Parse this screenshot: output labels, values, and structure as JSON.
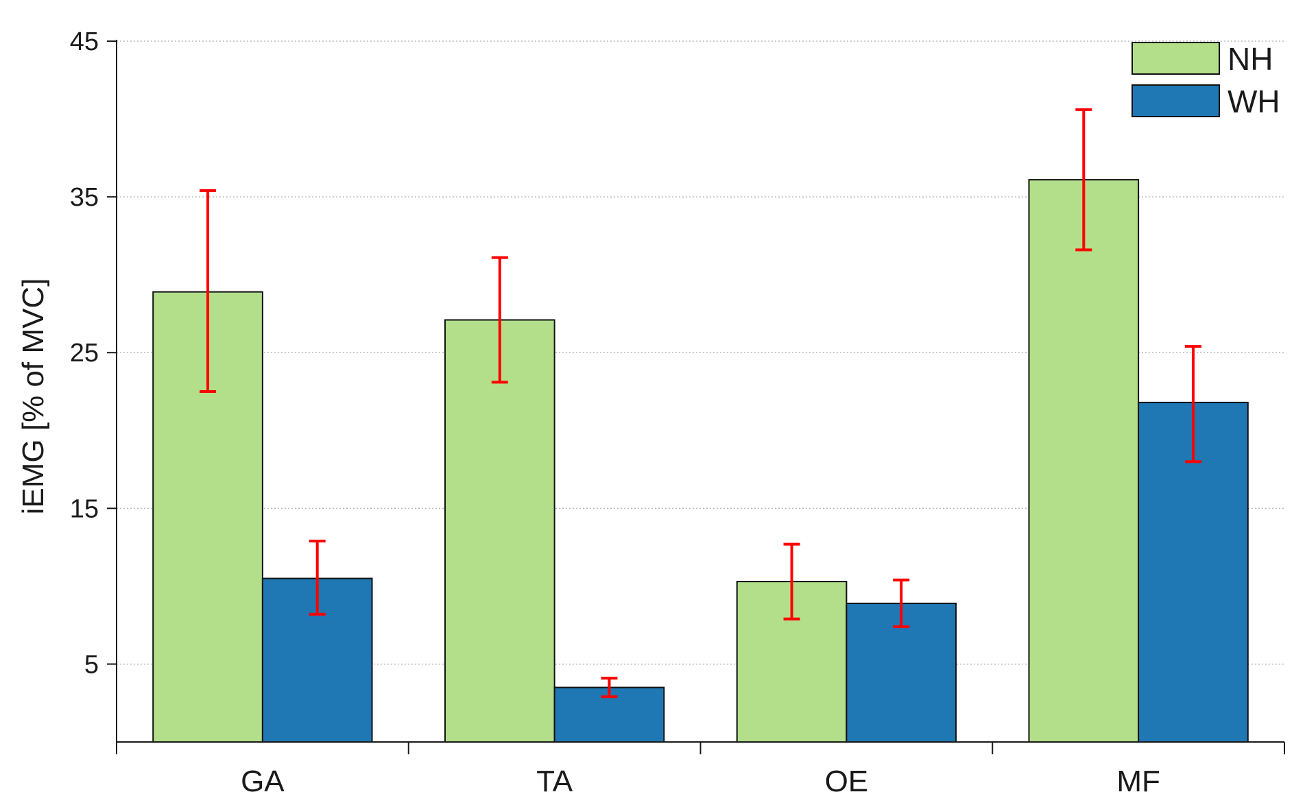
{
  "chart_data": {
    "type": "bar",
    "categories": [
      "GA",
      "TA",
      "OE",
      "MF"
    ],
    "series": [
      {
        "name": "NH",
        "color": "#b3df8a",
        "values": [
          28.9,
          27.1,
          10.3,
          36.1
        ],
        "err_low": [
          22.5,
          23.1,
          7.9,
          31.6
        ],
        "err_high": [
          35.4,
          31.1,
          12.7,
          40.6
        ]
      },
      {
        "name": "WH",
        "color": "#1f78b4",
        "values": [
          10.5,
          3.5,
          8.9,
          21.8
        ],
        "err_low": [
          8.2,
          2.9,
          7.4,
          18.0
        ],
        "err_high": [
          12.9,
          4.1,
          10.4,
          25.4
        ]
      }
    ],
    "error_bar_color": "#ff0000",
    "xlabel": "",
    "ylabel": "iEMG [% of MVC]",
    "ylim": [
      0,
      45
    ],
    "yticks": [
      "5",
      "15",
      "25",
      "35",
      "45"
    ],
    "grid": true,
    "legend_position": "top-right"
  }
}
